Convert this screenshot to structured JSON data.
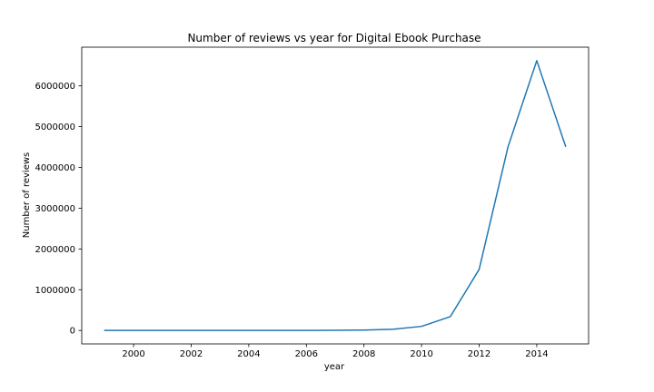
{
  "chart_data": {
    "type": "line",
    "title": "Number of reviews vs year for Digital Ebook Purchase",
    "xlabel": "year",
    "ylabel": "Number of reviews",
    "xlim": [
      1998.2,
      2015.8
    ],
    "ylim": [
      -330000,
      6950000
    ],
    "xticks": [
      2000,
      2002,
      2004,
      2006,
      2008,
      2010,
      2012,
      2014
    ],
    "xtick_labels": [
      "2000",
      "2002",
      "2004",
      "2006",
      "2008",
      "2010",
      "2012",
      "2014"
    ],
    "yticks": [
      0,
      1000000,
      2000000,
      3000000,
      4000000,
      5000000,
      6000000
    ],
    "ytick_labels": [
      "0",
      "1000000",
      "2000000",
      "3000000",
      "4000000",
      "5000000",
      "6000000"
    ],
    "grid": false,
    "series": [
      {
        "color": "#1f77b4",
        "x": [
          1999,
          2000,
          2001,
          2002,
          2003,
          2004,
          2005,
          2006,
          2007,
          2008,
          2009,
          2010,
          2011,
          2012,
          2013,
          2014,
          2015
        ],
        "y": [
          0,
          0,
          0,
          0,
          0,
          0,
          0,
          1000,
          3000,
          10000,
          30000,
          100000,
          340000,
          1500000,
          4500000,
          6620000,
          4520000
        ]
      }
    ]
  }
}
